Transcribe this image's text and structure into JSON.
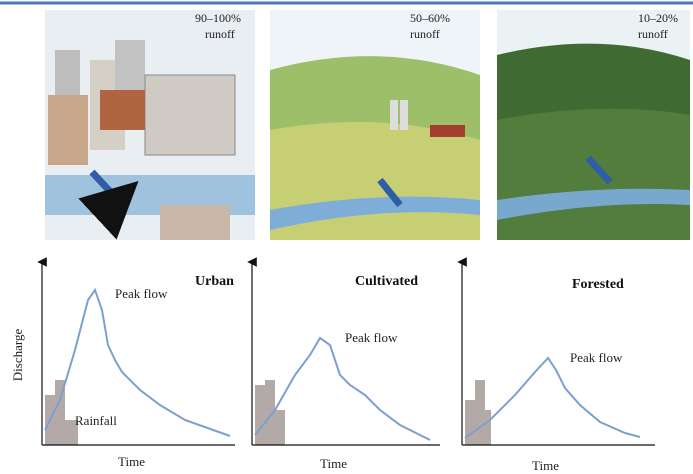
{
  "scenes": [
    {
      "runoff": "90–100%",
      "label": "runoff"
    },
    {
      "runoff": "50–60%",
      "label": "runoff"
    },
    {
      "runoff": "10–20%",
      "label": "runoff"
    }
  ],
  "graphs": [
    {
      "title": "Urban",
      "peak_label": "Peak flow",
      "x_label": "Time"
    },
    {
      "title": "Cultivated",
      "peak_label": "Peak flow",
      "x_label": "Time"
    },
    {
      "title": "Forested",
      "peak_label": "Peak flow",
      "x_label": "Time"
    }
  ],
  "y_label": "Discharge",
  "rainfall_label": "Rainfall"
}
